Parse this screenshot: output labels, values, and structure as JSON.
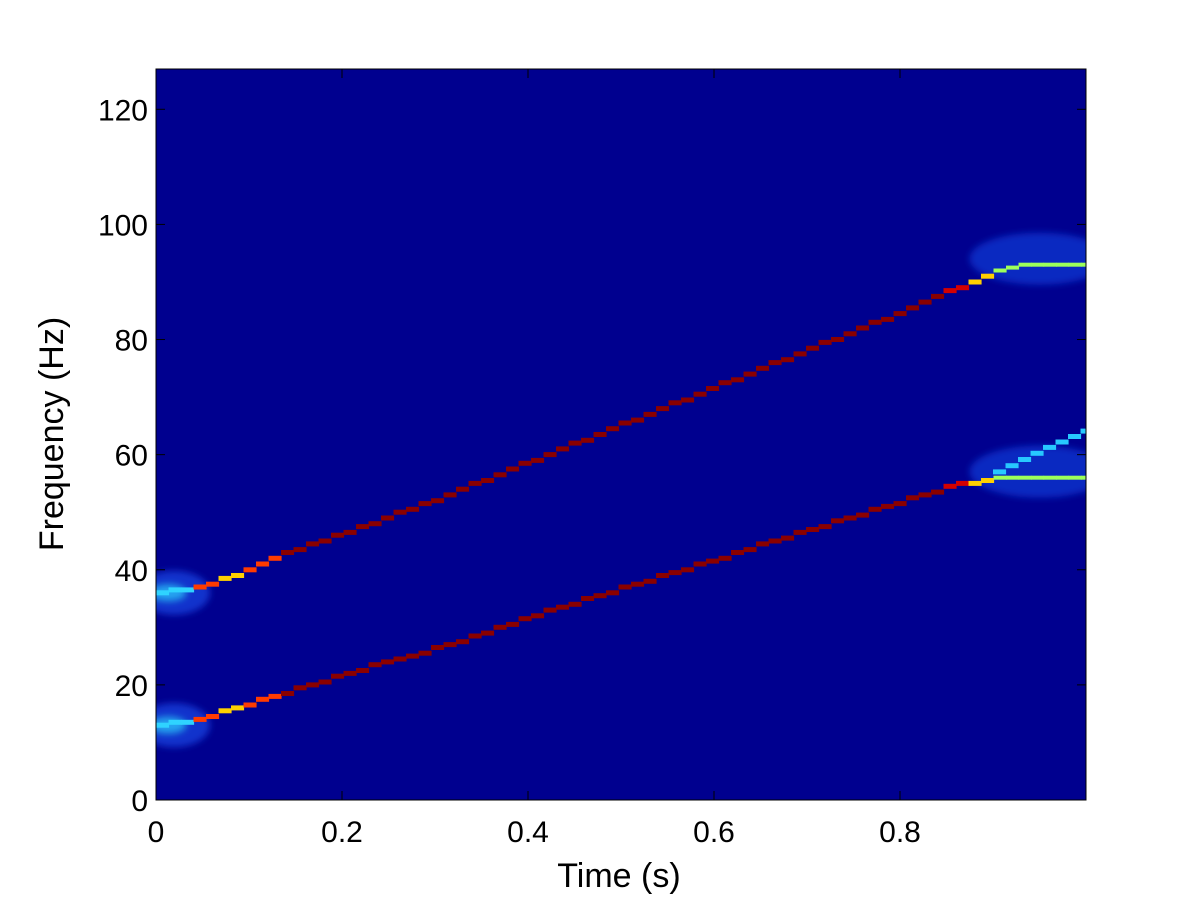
{
  "chart_data": {
    "type": "heatmap",
    "title": "",
    "xlabel": "Time (s)",
    "ylabel": "Frequency (Hz)",
    "xlim": [
      0,
      1
    ],
    "ylim": [
      0,
      127
    ],
    "x_ticks": [
      0,
      0.2,
      0.4,
      0.6,
      0.8
    ],
    "x_tick_labels": [
      "0",
      "0.2",
      "0.4",
      "0.6",
      "0.8"
    ],
    "y_ticks": [
      0,
      20,
      40,
      60,
      80,
      100,
      120
    ],
    "y_tick_labels": [
      "0",
      "20",
      "40",
      "60",
      "80",
      "100",
      "120"
    ],
    "colormap": "jet",
    "background_color": "#00008f",
    "series": [
      {
        "points": [
          [
            0.0,
            36
          ],
          [
            0.02,
            36.5
          ],
          [
            0.05,
            37.5
          ],
          [
            0.08,
            39
          ],
          [
            0.12,
            42
          ],
          [
            0.2,
            46.5
          ],
          [
            0.3,
            52.5
          ],
          [
            0.4,
            59
          ],
          [
            0.5,
            65.5
          ],
          [
            0.6,
            72
          ],
          [
            0.7,
            78.5
          ],
          [
            0.8,
            85
          ],
          [
            0.85,
            88.5
          ],
          [
            0.9,
            92
          ],
          [
            0.92,
            93
          ],
          [
            1.0,
            93
          ]
        ]
      },
      {
        "points": [
          [
            0.0,
            13
          ],
          [
            0.02,
            13.5
          ],
          [
            0.05,
            14.5
          ],
          [
            0.08,
            16
          ],
          [
            0.12,
            18
          ],
          [
            0.2,
            22
          ],
          [
            0.3,
            26.5
          ],
          [
            0.4,
            32
          ],
          [
            0.5,
            37
          ],
          [
            0.6,
            42
          ],
          [
            0.7,
            47
          ],
          [
            0.8,
            52
          ],
          [
            0.85,
            54.5
          ],
          [
            0.9,
            56
          ],
          [
            0.92,
            56
          ],
          [
            1.0,
            56
          ]
        ]
      },
      {
        "points": [
          [
            0.9,
            57
          ],
          [
            0.95,
            61
          ],
          [
            1.0,
            64.5
          ]
        ]
      }
    ]
  }
}
